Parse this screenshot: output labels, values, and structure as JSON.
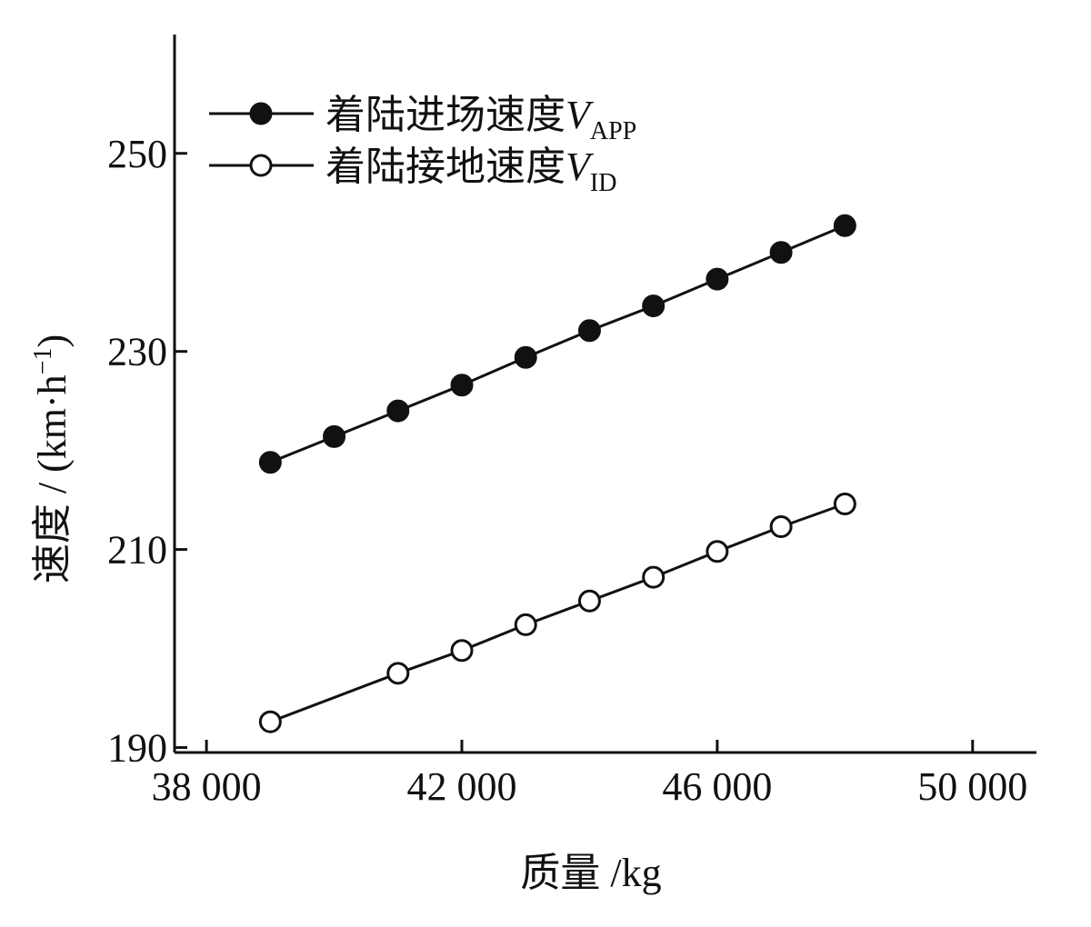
{
  "chart_data": {
    "type": "line",
    "xlabel": "质量 /kg",
    "ylabel_main": "速度 / (km·h",
    "ylabel_sup": "−1",
    "ylabel_close": ")",
    "xlim": [
      37500,
      51000
    ],
    "ylim": [
      189.5,
      262
    ],
    "x_ticks": [
      38000,
      42000,
      46000,
      50000
    ],
    "x_tick_labels": [
      "38 000",
      "42 000",
      "46 000",
      "50 000"
    ],
    "y_ticks": [
      190,
      210,
      230,
      250
    ],
    "y_tick_labels": [
      "190",
      "210",
      "230",
      "250"
    ],
    "grid": false,
    "legend_position": "top-left",
    "series": [
      {
        "name_main": "着陆进场速度",
        "name_var": "V",
        "name_sub": "APP",
        "marker": "filled-circle",
        "x": [
          39000,
          40000,
          41000,
          42000,
          43000,
          44000,
          45000,
          46000,
          47000,
          48000
        ],
        "y": [
          218.8,
          221.4,
          224.0,
          226.6,
          229.4,
          232.1,
          234.6,
          237.3,
          240.0,
          242.7
        ]
      },
      {
        "name_main": "着陆接地速度",
        "name_var": "V",
        "name_sub": "ID",
        "marker": "open-circle",
        "x": [
          39000,
          41000,
          42000,
          43000,
          44000,
          45000,
          46000,
          47000,
          48000
        ],
        "y": [
          192.6,
          197.5,
          199.8,
          202.4,
          204.8,
          207.2,
          209.8,
          212.3,
          214.6
        ]
      }
    ]
  }
}
